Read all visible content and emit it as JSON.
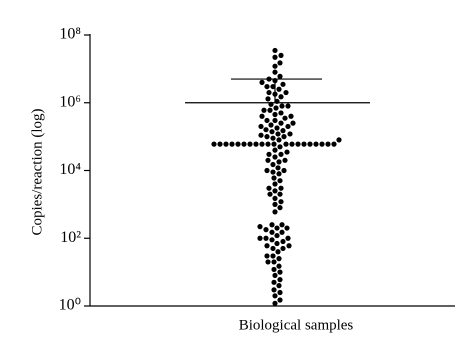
{
  "chart_data": {
    "type": "dotplot",
    "y_label": "Copies/reaction (log)",
    "x_label": "Biological samples",
    "y_scale": "log",
    "color": "#000000",
    "ylim": [
      1,
      100000000
    ],
    "yticks": [
      {
        "value": 1,
        "label": "10⁰"
      },
      {
        "value": 100,
        "label": "10²"
      },
      {
        "value": 10000,
        "label": "10⁴"
      },
      {
        "value": 1000000,
        "label": "10⁶"
      },
      {
        "value": 100000000,
        "label": "10⁸"
      }
    ],
    "center_line": 1000000,
    "error_bar_top": 5000000,
    "values": [
      35000000,
      25000000,
      22000000,
      15000000,
      12000000,
      8000000,
      6000000,
      5000000,
      4500000,
      4000000,
      3500000,
      3000000,
      3000000,
      2500000,
      2000000,
      2000000,
      1800000,
      1500000,
      1300000,
      1100000,
      900000,
      800000,
      800000,
      700000,
      600000,
      600000,
      500000,
      450000,
      400000,
      400000,
      350000,
      300000,
      300000,
      250000,
      250000,
      220000,
      200000,
      200000,
      180000,
      160000,
      150000,
      140000,
      120000,
      120000,
      110000,
      100000,
      100000,
      90000,
      80000,
      80000,
      60000,
      60000,
      60000,
      60000,
      60000,
      60000,
      60000,
      60000,
      60000,
      60000,
      60000,
      60000,
      60000,
      60000,
      60000,
      60000,
      60000,
      60000,
      60000,
      60000,
      50000,
      40000,
      35000,
      30000,
      30000,
      25000,
      20000,
      20000,
      18000,
      15000,
      12000,
      10000,
      10000,
      9000,
      8000,
      6000,
      5000,
      4000,
      3000,
      3000,
      2500,
      2000,
      2000,
      1500,
      1200,
      1000,
      800,
      600,
      250,
      250,
      220,
      200,
      200,
      180,
      150,
      150,
      120,
      100,
      100,
      100,
      90,
      80,
      70,
      60,
      60,
      50,
      50,
      40,
      30,
      30,
      25,
      20,
      20,
      15,
      12,
      10,
      8,
      6,
      5,
      4,
      3,
      2.5,
      2,
      1.5,
      1.2
    ]
  }
}
